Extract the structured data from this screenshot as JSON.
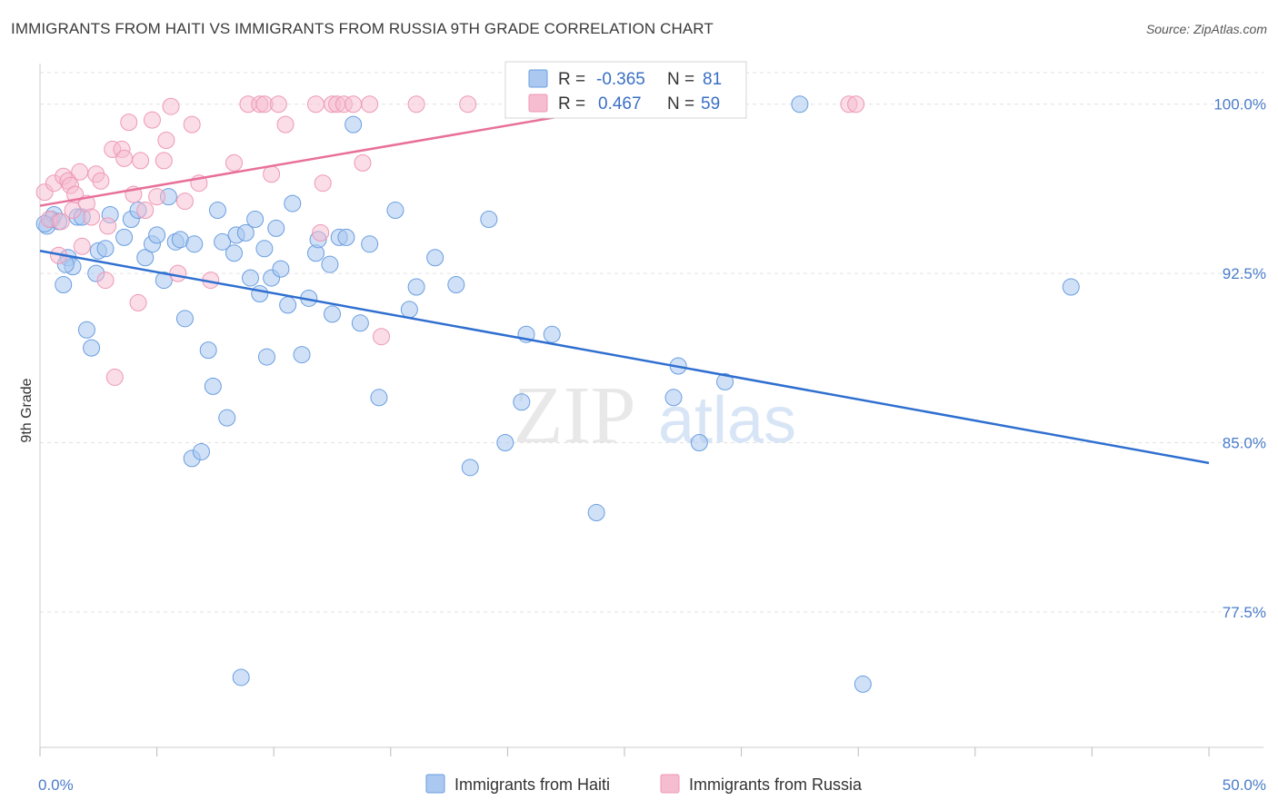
{
  "title": "IMMIGRANTS FROM HAITI VS IMMIGRANTS FROM RUSSIA 9TH GRADE CORRELATION CHART",
  "source": "Source: ZipAtlas.com",
  "watermark": {
    "zip": "ZIP",
    "atlas": "atlas"
  },
  "colors": {
    "haiti_fill": "#aac8f0",
    "haiti_stroke": "#6a9ee0",
    "haiti_line": "#2f6fd0",
    "russia_fill": "#f6bcd0",
    "russia_stroke": "#ee98b6",
    "russia_line": "#e8709a",
    "grid": "#e2e2e2",
    "axis_label": "#4a7cc9"
  },
  "legend": {
    "rows": [
      {
        "r_label": "R =",
        "r_value": "-0.365",
        "n_label": "N =",
        "n_value": "81"
      },
      {
        "r_label": "R =",
        "r_value": "0.467",
        "n_label": "N =",
        "n_value": "59"
      }
    ]
  },
  "chart_data": {
    "type": "scatter",
    "title": "IMMIGRANTS FROM HAITI VS IMMIGRANTS FROM RUSSIA 9TH GRADE CORRELATION CHART",
    "xlabel": "",
    "ylabel": "9th Grade",
    "xlim": [
      0,
      50
    ],
    "ylim": [
      71.5,
      101.8
    ],
    "x_tick_labels": [
      "0.0%",
      "50.0%"
    ],
    "y_ticks": [
      77.5,
      85.0,
      92.5,
      100.0
    ],
    "y_tick_labels": [
      "77.5%",
      "85.0%",
      "92.5%",
      "100.0%"
    ],
    "grid": true,
    "series": [
      {
        "name": "Immigrants from Haiti",
        "r": -0.365,
        "n": 81,
        "trend": {
          "x": [
            0,
            50
          ],
          "y": [
            93.5,
            84.1
          ]
        },
        "points": [
          [
            0.3,
            94.6
          ],
          [
            0.5,
            94.9
          ],
          [
            0.6,
            95.1
          ],
          [
            0.8,
            94.8
          ],
          [
            1.0,
            92.0
          ],
          [
            1.2,
            93.2
          ],
          [
            1.4,
            92.8
          ],
          [
            1.6,
            95.0
          ],
          [
            1.8,
            95.0
          ],
          [
            2.0,
            90.0
          ],
          [
            2.2,
            89.2
          ],
          [
            2.4,
            92.5
          ],
          [
            2.5,
            93.5
          ],
          [
            2.8,
            93.6
          ],
          [
            3.0,
            95.1
          ],
          [
            3.6,
            94.1
          ],
          [
            3.9,
            94.9
          ],
          [
            4.2,
            95.3
          ],
          [
            4.5,
            93.2
          ],
          [
            4.8,
            93.8
          ],
          [
            5.0,
            94.2
          ],
          [
            5.3,
            92.2
          ],
          [
            5.5,
            95.9
          ],
          [
            5.8,
            93.9
          ],
          [
            6.0,
            94.0
          ],
          [
            6.2,
            90.5
          ],
          [
            6.5,
            84.3
          ],
          [
            6.6,
            93.8
          ],
          [
            6.9,
            84.6
          ],
          [
            7.2,
            89.1
          ],
          [
            7.4,
            87.5
          ],
          [
            7.6,
            95.3
          ],
          [
            7.8,
            93.9
          ],
          [
            8.0,
            86.1
          ],
          [
            8.3,
            93.4
          ],
          [
            8.4,
            94.2
          ],
          [
            8.6,
            74.6
          ],
          [
            8.8,
            94.3
          ],
          [
            9.0,
            92.3
          ],
          [
            9.4,
            91.6
          ],
          [
            9.6,
            93.6
          ],
          [
            9.7,
            88.8
          ],
          [
            9.9,
            92.3
          ],
          [
            10.3,
            92.7
          ],
          [
            10.6,
            91.1
          ],
          [
            10.8,
            95.6
          ],
          [
            11.2,
            88.9
          ],
          [
            11.5,
            91.4
          ],
          [
            11.8,
            93.4
          ],
          [
            11.9,
            94.0
          ],
          [
            12.4,
            92.9
          ],
          [
            12.5,
            90.7
          ],
          [
            12.8,
            94.1
          ],
          [
            13.1,
            94.1
          ],
          [
            13.4,
            99.1
          ],
          [
            13.7,
            90.3
          ],
          [
            14.1,
            93.8
          ],
          [
            14.5,
            87.0
          ],
          [
            15.2,
            95.3
          ],
          [
            15.8,
            90.9
          ],
          [
            16.1,
            91.9
          ],
          [
            16.9,
            93.2
          ],
          [
            17.8,
            92.0
          ],
          [
            18.4,
            83.9
          ],
          [
            19.2,
            94.9
          ],
          [
            19.9,
            85.0
          ],
          [
            20.6,
            86.8
          ],
          [
            20.8,
            89.8
          ],
          [
            21.9,
            89.8
          ],
          [
            23.8,
            81.9
          ],
          [
            27.1,
            87.0
          ],
          [
            27.3,
            88.4
          ],
          [
            28.2,
            85.0
          ],
          [
            29.3,
            87.7
          ],
          [
            32.5,
            100.0
          ],
          [
            35.2,
            74.3
          ],
          [
            44.1,
            91.9
          ],
          [
            0.2,
            94.7
          ],
          [
            1.1,
            92.9
          ],
          [
            9.2,
            94.9
          ],
          [
            10.1,
            94.5
          ]
        ]
      },
      {
        "name": "Immigrants from Russia",
        "r": 0.467,
        "n": 59,
        "trend": {
          "x": [
            0,
            27
          ],
          "y": [
            95.5,
            100.3
          ]
        },
        "points": [
          [
            0.2,
            96.1
          ],
          [
            0.4,
            94.9
          ],
          [
            0.6,
            96.5
          ],
          [
            0.8,
            93.3
          ],
          [
            1.0,
            96.8
          ],
          [
            1.2,
            96.6
          ],
          [
            1.3,
            96.4
          ],
          [
            1.5,
            96.0
          ],
          [
            1.7,
            97.0
          ],
          [
            1.8,
            93.7
          ],
          [
            2.0,
            95.6
          ],
          [
            2.2,
            95.0
          ],
          [
            2.4,
            96.9
          ],
          [
            2.6,
            96.6
          ],
          [
            2.8,
            92.2
          ],
          [
            2.9,
            94.6
          ],
          [
            3.1,
            98.0
          ],
          [
            3.2,
            87.9
          ],
          [
            3.5,
            98.0
          ],
          [
            3.6,
            97.6
          ],
          [
            3.8,
            99.2
          ],
          [
            4.0,
            96.0
          ],
          [
            4.2,
            91.2
          ],
          [
            4.3,
            97.5
          ],
          [
            4.5,
            95.3
          ],
          [
            4.8,
            99.3
          ],
          [
            5.0,
            95.9
          ],
          [
            5.3,
            97.5
          ],
          [
            5.4,
            98.4
          ],
          [
            5.6,
            99.9
          ],
          [
            5.9,
            92.5
          ],
          [
            6.2,
            95.7
          ],
          [
            6.5,
            99.1
          ],
          [
            6.8,
            96.5
          ],
          [
            7.3,
            92.2
          ],
          [
            8.3,
            97.4
          ],
          [
            8.9,
            100.0
          ],
          [
            9.4,
            100.0
          ],
          [
            9.6,
            100.0
          ],
          [
            9.9,
            96.9
          ],
          [
            10.2,
            100.0
          ],
          [
            10.5,
            99.1
          ],
          [
            11.8,
            100.0
          ],
          [
            12.0,
            94.3
          ],
          [
            12.1,
            96.5
          ],
          [
            12.5,
            100.0
          ],
          [
            12.7,
            100.0
          ],
          [
            13.0,
            100.0
          ],
          [
            13.4,
            100.0
          ],
          [
            13.8,
            97.4
          ],
          [
            14.1,
            100.0
          ],
          [
            14.6,
            89.7
          ],
          [
            16.1,
            100.0
          ],
          [
            18.3,
            100.0
          ],
          [
            26.9,
            100.0
          ],
          [
            34.6,
            100.0
          ],
          [
            34.9,
            100.0
          ],
          [
            1.4,
            95.3
          ],
          [
            0.9,
            94.8
          ]
        ]
      }
    ]
  },
  "bottom_legend": [
    {
      "label": "Immigrants from Haiti"
    },
    {
      "label": "Immigrants from Russia"
    }
  ]
}
